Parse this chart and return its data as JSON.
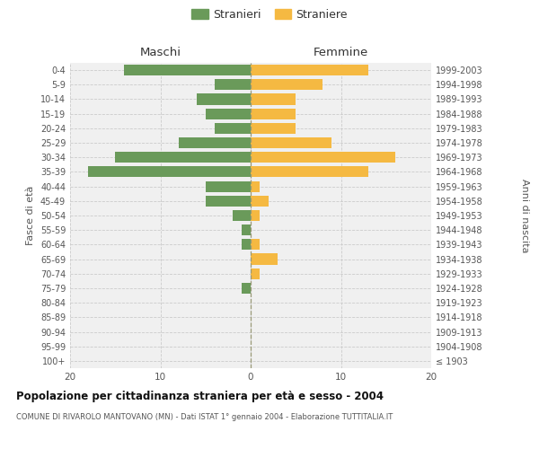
{
  "age_groups": [
    "100+",
    "95-99",
    "90-94",
    "85-89",
    "80-84",
    "75-79",
    "70-74",
    "65-69",
    "60-64",
    "55-59",
    "50-54",
    "45-49",
    "40-44",
    "35-39",
    "30-34",
    "25-29",
    "20-24",
    "15-19",
    "10-14",
    "5-9",
    "0-4"
  ],
  "birth_years": [
    "≤ 1903",
    "1904-1908",
    "1909-1913",
    "1914-1918",
    "1919-1923",
    "1924-1928",
    "1929-1933",
    "1934-1938",
    "1939-1943",
    "1944-1948",
    "1949-1953",
    "1954-1958",
    "1959-1963",
    "1964-1968",
    "1969-1973",
    "1974-1978",
    "1979-1983",
    "1984-1988",
    "1989-1993",
    "1994-1998",
    "1999-2003"
  ],
  "males": [
    0,
    0,
    0,
    0,
    0,
    1,
    0,
    0,
    1,
    1,
    2,
    5,
    5,
    18,
    15,
    8,
    4,
    5,
    6,
    4,
    14
  ],
  "females": [
    0,
    0,
    0,
    0,
    0,
    0,
    1,
    3,
    1,
    0,
    1,
    2,
    1,
    13,
    16,
    9,
    5,
    5,
    5,
    8,
    13
  ],
  "male_color": "#6a9a5a",
  "female_color": "#f5b942",
  "background_color": "#f0f0f0",
  "grid_color": "#cccccc",
  "title": "Popolazione per cittadinanza straniera per età e sesso - 2004",
  "subtitle": "COMUNE DI RIVAROLO MANTOVANO (MN) - Dati ISTAT 1° gennaio 2004 - Elaborazione TUTTITALIA.IT",
  "xlabel_left": "Maschi",
  "xlabel_right": "Femmine",
  "ylabel_left": "Fasce di età",
  "ylabel_right": "Anni di nascita",
  "legend_male": "Stranieri",
  "legend_female": "Straniere",
  "xlim": 20
}
